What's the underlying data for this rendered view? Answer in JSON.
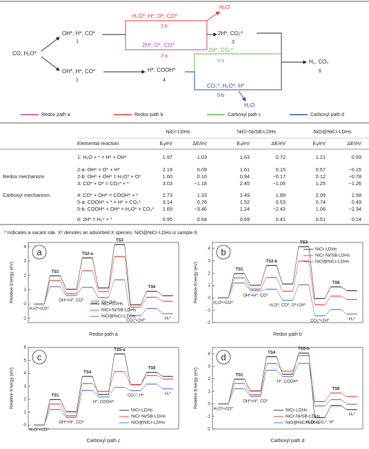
{
  "scheme": {
    "nodes": [
      {
        "label": "CO, H₂O*"
      },
      {
        "label": "OH*, H*, CO*",
        "step": "1"
      },
      {
        "label": "OH*, H*, CO*",
        "step": "1"
      },
      {
        "label": "H₂O*, H*, O*, CO*",
        "step": "2-b"
      },
      {
        "label": "2H*, O*, CO*",
        "step": "2-a"
      },
      {
        "label": "H₂O"
      },
      {
        "label": "2H*, CO₂*",
        "step": "3"
      },
      {
        "label": "H*, COOH*",
        "step": "4"
      },
      {
        "label": "2H*, CO₂*",
        "step": "5-a"
      },
      {
        "label": "CO₂*, H₂O*, H*",
        "step": "5-b"
      },
      {
        "label": "H₂O"
      },
      {
        "label": "H₂, CO₂",
        "step": "6"
      }
    ],
    "legend": [
      {
        "name": "Redox path a",
        "color": "#b8409e"
      },
      {
        "name": "Redox path b",
        "color": "#e8322a"
      },
      {
        "name": "Carboxyl path c",
        "color": "#5cb83c"
      },
      {
        "name": "Carboxyl path d",
        "color": "#2e4aa8"
      }
    ]
  },
  "table": {
    "header": {
      "reaction": "Elemental reaction",
      "samples": [
        "NiCr-LDHs",
        "NiCr-Ni/SB-LDHs",
        "NiO@NiCr-LDHs"
      ],
      "columns": [
        "Eₐ/eV",
        "ΔE/eV"
      ]
    },
    "rows": [
      {
        "reaction": "1: H₂O + * = H* + OH*",
        "values": [
          "1.97",
          "1.03",
          "1.63",
          "0.72",
          "1.21",
          "0.59"
        ]
      },
      {
        "reaction": "2-a: OH* = O* + H*",
        "values": [
          "2.19",
          "0.09",
          "1.61",
          "0.15",
          "0.57",
          "−0.15"
        ]
      },
      {
        "group": "Redox mechanism",
        "reaction": "2-b: OH* + OH* = H₂O* + O*",
        "values": [
          "1.60",
          "0.10",
          "0.94",
          "−0.17",
          "0.12",
          "−0.78"
        ]
      },
      {
        "reaction": "3: CO* + O* = CO₂* + *",
        "values": [
          "3.03",
          "−1.18",
          "2.45",
          "−1.09",
          "1.25",
          "−1.26"
        ]
      },
      {
        "group": "Carboxyl mechanism",
        "reaction": "4: CO* + OH* = COOH* + *",
        "values": [
          "2.73",
          "1.33",
          "2.49",
          "1.89",
          "2.09",
          "1.58"
        ]
      },
      {
        "reaction": "5-a: COOH* + * = H* + CO₂*",
        "values": [
          "3.14",
          "0.76",
          "1.52",
          "0.53",
          "0.74",
          "0.49"
        ]
      },
      {
        "reaction": "5-b: COOH* + OH* = H₂O* + CO₂*",
        "values": [
          "1.69",
          "−3.46",
          "1.24",
          "−2.43",
          "1.06",
          "−2.34"
        ]
      },
      {
        "reaction": "6: 2H* = H₂* + *",
        "values": [
          "0.95",
          "0.64",
          "0.69",
          "0.41",
          "0.51",
          "0.14"
        ]
      }
    ],
    "footnote": "* Indicates a vacant site. X* denotes an adsorbed X species. NiO@NiCr-LDHs is sample 6."
  },
  "chart_data": [
    {
      "type": "line",
      "panel": "a",
      "xlabel": "Redox path a",
      "ylabel": "Relative Energy (eV)",
      "legend": "lower center",
      "categories": [
        "H₂O*+CO*",
        "TS1",
        "OH*+H*, CO*",
        "TS2-a",
        "CO*, O*+2H*",
        "TS3",
        "CO₂*+2H*",
        "TS6",
        "H₂*"
      ],
      "ylim": [
        -1.3,
        4.3
      ],
      "yticks": [
        -1,
        0,
        1,
        2,
        3,
        4
      ],
      "series": [
        {
          "name": "NiCr-LDHs",
          "color": "#333333",
          "values": [
            0,
            1.97,
            1.03,
            3.22,
            1.12,
            4.15,
            -0.06,
            0.89,
            0.58
          ]
        },
        {
          "name": "NiCr-Ni/SB-LDHs",
          "color": "#e8463a",
          "values": [
            0,
            1.63,
            0.72,
            2.33,
            0.87,
            3.32,
            -0.22,
            0.47,
            0.19
          ]
        },
        {
          "name": "NiO@NiCr-LDHs",
          "color": "#5b73d6",
          "values": [
            0,
            1.21,
            0.59,
            1.16,
            0.44,
            1.69,
            -0.82,
            -0.31,
            -0.68
          ]
        }
      ]
    },
    {
      "type": "line",
      "panel": "b",
      "xlabel": "Redox path b",
      "ylabel": "Relative Energy (eV)",
      "legend": "upper right",
      "categories": [
        "H₂O*+CO*",
        "TS1",
        "OH*+H*, CO*",
        "TS2-b",
        "H₂O*, CO*, O*+2H*",
        "TS3",
        "CO₂*+2H*",
        "TS6",
        "H₂*"
      ],
      "ylim": [
        -2,
        4.5
      ],
      "yticks": [
        -2,
        -1,
        0,
        1,
        2,
        3,
        4
      ],
      "series": [
        {
          "name": "NiCr-LDHs",
          "color": "#333333",
          "values": [
            0,
            1.97,
            1.03,
            2.63,
            1.13,
            4.16,
            -0.05,
            0.9,
            0.59
          ]
        },
        {
          "name": "NiCr-Ni/SB-LDHs",
          "color": "#e8463a",
          "values": [
            0,
            1.63,
            0.72,
            1.66,
            0.55,
            3.0,
            -0.54,
            0.15,
            -0.13
          ]
        },
        {
          "name": "NiO@NiCr-LDHs",
          "color": "#5b73d6",
          "values": [
            0,
            1.21,
            0.59,
            0.71,
            -0.19,
            1.06,
            -1.45,
            -0.94,
            -1.31
          ]
        }
      ]
    },
    {
      "type": "line",
      "panel": "c",
      "xlabel": "Carboxyl path c",
      "ylabel": "Relative Energy (eV)",
      "legend": "lower right",
      "categories": [
        "H₂O*+CO*",
        "TS1",
        "OH*+H*, CO*",
        "TS4",
        "H*, COOH*",
        "TS5-a",
        "CO₂*, H*",
        "TS6",
        "H₂*"
      ],
      "ylim": [
        -0.3,
        6
      ],
      "yticks": [
        0,
        1,
        2,
        3,
        4,
        5,
        6
      ],
      "series": [
        {
          "name": "NiCr-LDHs",
          "color": "#333333",
          "values": [
            0,
            1.97,
            1.03,
            3.76,
            2.36,
            5.5,
            3.12,
            4.07,
            3.76
          ]
        },
        {
          "name": "NiCr-Ni/SB-LDHs",
          "color": "#e8463a",
          "values": [
            0,
            1.63,
            0.72,
            3.21,
            2.61,
            4.13,
            3.14,
            3.83,
            3.55
          ]
        },
        {
          "name": "NiO@NiCr-LDHs",
          "color": "#5b73d6",
          "values": [
            0,
            1.21,
            0.59,
            2.68,
            2.17,
            2.91,
            2.66,
            3.17,
            2.8
          ]
        }
      ]
    },
    {
      "type": "line",
      "panel": "d",
      "xlabel": "Carboxyl path d",
      "ylabel": "Relative Energy (eV)",
      "legend": "lower center",
      "categories": [
        "H₂O*+CO*",
        "TS1",
        "OH*+H*, CO*",
        "TS4",
        "H*, COOH*",
        "TS5-b",
        "H₂O*, CO₂*, H*",
        "TS6",
        "H₂*"
      ],
      "ylim": [
        -2,
        4.5
      ],
      "yticks": [
        -2,
        -1,
        0,
        1,
        2,
        3,
        4
      ],
      "series": [
        {
          "name": "NiCr-LDHs",
          "color": "#333333",
          "values": [
            0,
            1.97,
            1.03,
            3.76,
            2.36,
            4.05,
            -1.1,
            -0.15,
            -0.46
          ]
        },
        {
          "name": "NiCr-Ni/SB-LDHs",
          "color": "#e8463a",
          "values": [
            0,
            1.63,
            0.72,
            3.21,
            2.61,
            3.85,
            0.18,
            0.87,
            0.59
          ]
        },
        {
          "name": "NiO@NiCr-LDHs",
          "color": "#5b73d6",
          "values": [
            0,
            1.21,
            0.59,
            2.68,
            2.17,
            3.23,
            -0.17,
            0.34,
            -0.03
          ]
        }
      ]
    }
  ]
}
